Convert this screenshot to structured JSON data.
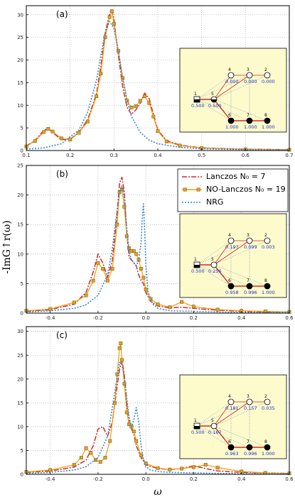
{
  "ylabel": "-ImG↑r(ω)",
  "xlabel": "ω",
  "legend": {
    "items": [
      {
        "label": "Lanczos N₀ = 7",
        "color": "#d62728",
        "style": "dashdot"
      },
      {
        "label": "NO-Lanczos N₀ = 19",
        "color": "#f0a000",
        "style": "solid-square"
      },
      {
        "label": "NRG",
        "color": "#3b87c8",
        "style": "dotted"
      }
    ]
  },
  "colors": {
    "lanczos": "#d62728",
    "nolanczos": "#f0a000",
    "nrg": "#3b87c8",
    "inset_bg": "#fdfbcb",
    "node_value": "#1a2fd6"
  },
  "chart_data": [
    {
      "type": "line",
      "panel_label": "(a)",
      "xlim": [
        0.1,
        0.7
      ],
      "ylim": [
        0,
        32
      ],
      "xticks": [
        0.1,
        0.2,
        0.3,
        0.4,
        0.5,
        0.6,
        0.7
      ],
      "yticks": [
        0,
        5,
        10,
        15,
        20,
        25,
        30
      ],
      "xtick_labels": [
        "0.1",
        "0.2",
        "0.3",
        "0.4",
        "0.5",
        "0.6",
        "0.7"
      ],
      "ytick_labels": [
        "0",
        "5",
        "10",
        "15",
        "20",
        "25",
        "30"
      ],
      "grid": true,
      "series": [
        {
          "name": "Lanczos N₀ = 7",
          "x": [
            0.1,
            0.12,
            0.14,
            0.15,
            0.16,
            0.18,
            0.2,
            0.22,
            0.24,
            0.26,
            0.27,
            0.28,
            0.29,
            0.295,
            0.3,
            0.31,
            0.32,
            0.33,
            0.34,
            0.35,
            0.36,
            0.37,
            0.38,
            0.39,
            0.4,
            0.42,
            0.45,
            0.5,
            0.6,
            0.7
          ],
          "y": [
            1.0,
            2.2,
            4.5,
            4.9,
            4.0,
            2.4,
            2.5,
            4.0,
            6.8,
            12.5,
            18.5,
            26.0,
            30.2,
            31.0,
            29.0,
            21.0,
            14.0,
            9.5,
            8.0,
            9.0,
            10.5,
            12.7,
            11.5,
            8.0,
            4.5,
            2.2,
            1.2,
            0.6,
            0.3,
            0.2
          ]
        },
        {
          "name": "NO-Lanczos N₀ = 19",
          "x": [
            0.1,
            0.12,
            0.14,
            0.15,
            0.16,
            0.18,
            0.2,
            0.22,
            0.24,
            0.26,
            0.27,
            0.28,
            0.29,
            0.295,
            0.3,
            0.31,
            0.32,
            0.33,
            0.34,
            0.35,
            0.36,
            0.37,
            0.38,
            0.39,
            0.4,
            0.42,
            0.45,
            0.5,
            0.6,
            0.7
          ],
          "y": [
            0.9,
            2.1,
            4.1,
            4.8,
            4.2,
            2.7,
            2.4,
            3.9,
            6.4,
            12.0,
            17.0,
            25.0,
            29.5,
            30.8,
            28.0,
            22.0,
            16.0,
            11.0,
            9.5,
            9.8,
            11.0,
            12.0,
            10.5,
            7.5,
            4.3,
            2.0,
            1.1,
            0.55,
            0.28,
            0.15
          ]
        },
        {
          "name": "NRG",
          "x": [
            0.1,
            0.14,
            0.18,
            0.22,
            0.24,
            0.26,
            0.27,
            0.28,
            0.29,
            0.3,
            0.31,
            0.32,
            0.33,
            0.34,
            0.36,
            0.38,
            0.4,
            0.45,
            0.5,
            0.6,
            0.7
          ],
          "y": [
            0.3,
            0.6,
            1.5,
            4.5,
            8.5,
            15.5,
            21.0,
            26.0,
            28.5,
            27.0,
            22.0,
            16.0,
            11.0,
            7.5,
            4.0,
            2.3,
            1.5,
            0.7,
            0.4,
            0.2,
            0.1
          ]
        }
      ],
      "inset": {
        "nodes": [
          {
            "id": "1",
            "value": "0.500",
            "filled": "half"
          },
          {
            "id": "2",
            "value": "0.000",
            "filled": "empty"
          },
          {
            "id": "3",
            "value": "0.000",
            "filled": "empty"
          },
          {
            "id": "4",
            "value": "0.000",
            "filled": "empty"
          },
          {
            "id": "5",
            "value": "0.500",
            "filled": "half"
          },
          {
            "id": "6",
            "value": "1.000",
            "filled": "full"
          },
          {
            "id": "7",
            "value": "1.000",
            "filled": "full"
          },
          {
            "id": "8",
            "value": "1.000",
            "filled": "full"
          }
        ]
      }
    },
    {
      "type": "line",
      "panel_label": "(b)",
      "xlim": [
        -0.5,
        0.6
      ],
      "ylim": [
        0,
        25
      ],
      "xticks": [
        -0.4,
        -0.2,
        0.0,
        0.2,
        0.4,
        0.6
      ],
      "yticks": [
        0,
        5,
        10,
        15,
        20,
        25
      ],
      "xtick_labels": [
        "-0.4",
        "-0.2",
        "0.0",
        "0.2",
        "0.4",
        "0.6"
      ],
      "ytick_labels": [
        "0",
        "5",
        "10",
        "15",
        "20",
        "25"
      ],
      "grid": true,
      "series": [
        {
          "name": "Lanczos N₀ = 7",
          "x": [
            -0.5,
            -0.4,
            -0.3,
            -0.25,
            -0.22,
            -0.2,
            -0.18,
            -0.16,
            -0.14,
            -0.12,
            -0.11,
            -0.1,
            -0.09,
            -0.08,
            -0.07,
            -0.06,
            -0.05,
            -0.04,
            -0.03,
            -0.02,
            -0.01,
            0.0,
            0.02,
            0.05,
            0.1,
            0.15,
            0.2,
            0.3,
            0.4,
            0.5,
            0.6
          ],
          "y": [
            0.3,
            0.6,
            1.5,
            3.5,
            7.0,
            10.0,
            8.5,
            6.0,
            9.0,
            17.0,
            22.0,
            23.0,
            20.5,
            13.5,
            9.5,
            9.0,
            8.5,
            8.0,
            6.5,
            5.5,
            5.0,
            3.5,
            2.0,
            1.2,
            0.9,
            1.0,
            0.8,
            0.5,
            0.3,
            0.2,
            0.2
          ]
        },
        {
          "name": "NO-Lanczos N₀ = 19",
          "x": [
            -0.5,
            -0.4,
            -0.3,
            -0.25,
            -0.22,
            -0.2,
            -0.18,
            -0.16,
            -0.14,
            -0.12,
            -0.11,
            -0.1,
            -0.09,
            -0.08,
            -0.07,
            -0.06,
            -0.05,
            -0.04,
            -0.03,
            -0.02,
            -0.01,
            0.0,
            0.02,
            0.05,
            0.1,
            0.15,
            0.2,
            0.3,
            0.4,
            0.5,
            0.6
          ],
          "y": [
            0.4,
            0.7,
            1.8,
            3.0,
            5.5,
            8.5,
            7.5,
            5.5,
            7.5,
            15.0,
            20.5,
            21.0,
            18.0,
            13.0,
            11.0,
            10.5,
            10.5,
            10.0,
            9.0,
            7.5,
            6.0,
            4.0,
            2.4,
            1.5,
            1.0,
            1.9,
            1.1,
            0.6,
            0.4,
            0.3,
            0.2
          ]
        },
        {
          "name": "NRG",
          "x": [
            -0.5,
            -0.4,
            -0.3,
            -0.25,
            -0.2,
            -0.16,
            -0.14,
            -0.12,
            -0.11,
            -0.1,
            -0.09,
            -0.08,
            -0.07,
            -0.06,
            -0.05,
            -0.04,
            -0.03,
            -0.02,
            -0.015,
            -0.01,
            -0.005,
            0.0,
            0.01,
            0.03,
            0.05,
            0.1,
            0.2,
            0.3,
            0.4,
            0.6
          ],
          "y": [
            0.2,
            0.4,
            0.8,
            1.4,
            3.0,
            6.5,
            11.0,
            17.5,
            20.5,
            21.5,
            19.5,
            14.5,
            10.5,
            9.0,
            8.5,
            8.0,
            9.0,
            12.0,
            16.0,
            18.5,
            14.0,
            8.0,
            3.5,
            1.5,
            0.8,
            0.4,
            0.3,
            0.2,
            0.1,
            0.1
          ]
        }
      ],
      "inset": {
        "nodes": [
          {
            "id": "1",
            "value": "0.500",
            "filled": "half"
          },
          {
            "id": "2",
            "value": "0.003",
            "filled": "empty"
          },
          {
            "id": "3",
            "value": "0.099",
            "filled": "empty"
          },
          {
            "id": "4",
            "value": "0.197",
            "filled": "empty"
          },
          {
            "id": "5",
            "value": "0.256",
            "filled": "empty"
          },
          {
            "id": "6",
            "value": "0.958",
            "filled": "full"
          },
          {
            "id": "7",
            "value": "0.996",
            "filled": "full"
          },
          {
            "id": "8",
            "value": "1.000",
            "filled": "full"
          }
        ]
      }
    },
    {
      "type": "line",
      "panel_label": "(c)",
      "xlim": [
        -0.5,
        0.6
      ],
      "ylim": [
        0,
        31
      ],
      "xticks": [
        -0.4,
        -0.2,
        0.0,
        0.2,
        0.4,
        0.6
      ],
      "yticks": [
        0,
        5,
        10,
        15,
        20,
        25,
        30
      ],
      "xtick_labels": [
        "-0.4",
        "-0.2",
        "0.0",
        "0.2",
        "0.4",
        "0.6"
      ],
      "ytick_labels": [
        "0",
        "5",
        "10",
        "15",
        "20",
        "25",
        "30"
      ],
      "grid": true,
      "series": [
        {
          "name": "Lanczos N₀ = 7",
          "x": [
            -0.5,
            -0.4,
            -0.3,
            -0.25,
            -0.22,
            -0.2,
            -0.18,
            -0.16,
            -0.14,
            -0.12,
            -0.11,
            -0.1,
            -0.09,
            -0.08,
            -0.07,
            -0.06,
            -0.05,
            -0.04,
            -0.02,
            0.0,
            0.05,
            0.1,
            0.15,
            0.2,
            0.25,
            0.3,
            0.4,
            0.5,
            0.6
          ],
          "y": [
            0.4,
            0.7,
            1.5,
            3.0,
            6.0,
            9.5,
            10.0,
            8.0,
            11.0,
            18.5,
            22.0,
            24.0,
            21.0,
            15.0,
            11.0,
            9.5,
            8.5,
            6.0,
            3.5,
            2.0,
            1.2,
            1.0,
            1.2,
            1.8,
            1.2,
            0.7,
            0.4,
            0.3,
            0.2
          ]
        },
        {
          "name": "NO-Lanczos N₀ = 19",
          "x": [
            -0.5,
            -0.4,
            -0.3,
            -0.27,
            -0.25,
            -0.23,
            -0.21,
            -0.19,
            -0.17,
            -0.15,
            -0.13,
            -0.12,
            -0.11,
            -0.105,
            -0.1,
            -0.09,
            -0.08,
            -0.07,
            -0.06,
            -0.05,
            -0.04,
            -0.02,
            0.0,
            0.05,
            0.1,
            0.15,
            0.2,
            0.25,
            0.3,
            0.4,
            0.5,
            0.6
          ],
          "y": [
            0.5,
            0.9,
            2.0,
            3.5,
            5.5,
            4.5,
            3.0,
            2.6,
            3.5,
            7.0,
            15.0,
            21.0,
            26.5,
            27.5,
            24.0,
            19.0,
            13.0,
            10.5,
            10.0,
            9.0,
            7.0,
            4.0,
            2.3,
            1.3,
            1.0,
            1.2,
            1.5,
            2.0,
            1.4,
            0.6,
            0.3,
            0.2
          ]
        },
        {
          "name": "NRG",
          "x": [
            -0.5,
            -0.4,
            -0.3,
            -0.25,
            -0.2,
            -0.16,
            -0.14,
            -0.12,
            -0.11,
            -0.1,
            -0.09,
            -0.08,
            -0.07,
            -0.06,
            -0.05,
            -0.04,
            -0.03,
            -0.02,
            -0.01,
            0.0,
            0.02,
            0.05,
            0.1,
            0.2,
            0.3,
            0.4,
            0.6
          ],
          "y": [
            0.2,
            0.4,
            0.9,
            1.6,
            3.5,
            8.0,
            14.0,
            20.5,
            23.5,
            23.0,
            20.5,
            16.0,
            12.0,
            10.0,
            11.5,
            14.0,
            11.0,
            6.0,
            3.0,
            1.6,
            0.9,
            0.6,
            0.4,
            0.3,
            0.2,
            0.1,
            0.1
          ]
        }
      ],
      "inset": {
        "nodes": [
          {
            "id": "1",
            "value": "0.500",
            "filled": "half"
          },
          {
            "id": "2",
            "value": "0.035",
            "filled": "empty"
          },
          {
            "id": "3",
            "value": "0.157",
            "filled": "empty"
          },
          {
            "id": "4",
            "value": "0.181",
            "filled": "empty"
          },
          {
            "id": "5",
            "value": "0.167",
            "filled": "empty"
          },
          {
            "id": "6",
            "value": "0.963",
            "filled": "full"
          },
          {
            "id": "7",
            "value": "0.996",
            "filled": "full"
          },
          {
            "id": "8",
            "value": "1.000",
            "filled": "full"
          }
        ]
      }
    }
  ]
}
